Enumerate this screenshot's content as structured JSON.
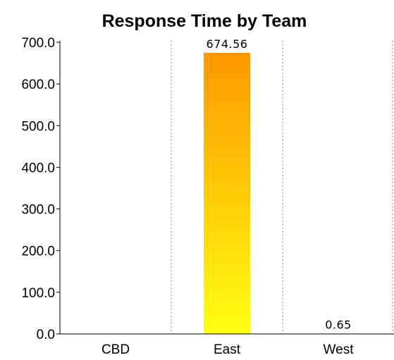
{
  "chart_data": {
    "type": "bar",
    "title": "Response Time by Team",
    "xlabel": "",
    "ylabel": "",
    "categories": [
      "CBD",
      "East",
      "West"
    ],
    "values": [
      null,
      674.56,
      0.65
    ],
    "data_labels": [
      "",
      "674.56",
      "0.65"
    ],
    "y_ticks": [
      "0.0",
      "100.0",
      "200.0",
      "300.0",
      "400.0",
      "500.0",
      "600.0",
      "700.0"
    ],
    "ylim": [
      0,
      700
    ],
    "grid": "vertical dotted category separators",
    "legend": "none",
    "colors": {
      "bar_top": "#ff9800",
      "bar_bottom": "#ffff10",
      "axis": "#000000",
      "grid": "#b0b0b0"
    }
  }
}
